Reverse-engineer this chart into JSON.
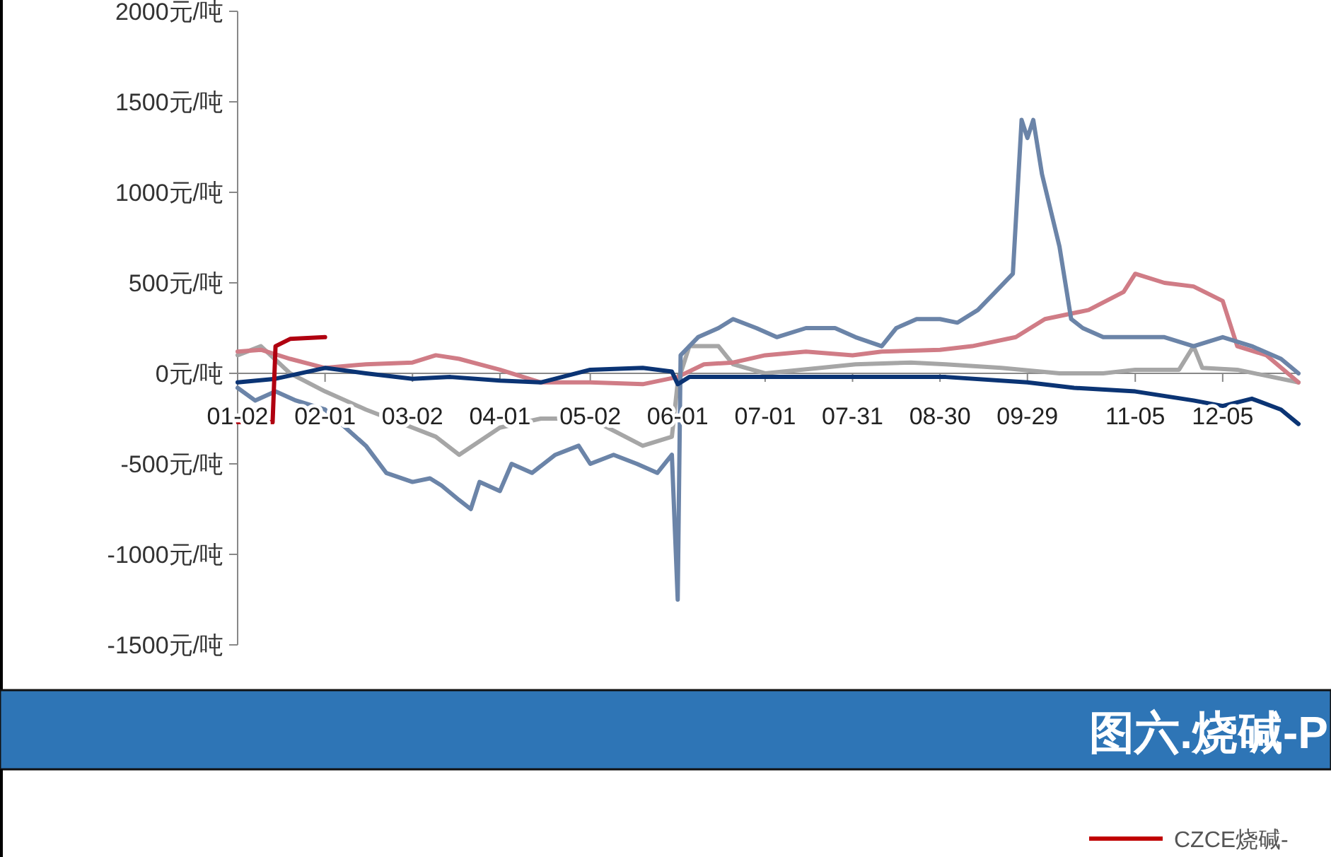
{
  "chart_data": {
    "type": "line",
    "xlim": [
      "--01-02",
      "--12-31"
    ],
    "xticks": [
      {
        "value": "--01-02",
        "label": "01-02"
      },
      {
        "value": "--02-01",
        "label": "02-01"
      },
      {
        "value": "--03-02",
        "label": "03-02"
      },
      {
        "value": "--04-01",
        "label": "04-01"
      },
      {
        "value": "--05-02",
        "label": "05-02"
      },
      {
        "value": "--06-01",
        "label": "06-01"
      },
      {
        "value": "--07-01",
        "label": "07-01"
      },
      {
        "value": "--07-31",
        "label": "07-31"
      },
      {
        "value": "--08-30",
        "label": "08-30"
      },
      {
        "value": "--09-29",
        "label": "09-29"
      },
      {
        "value": "--11-05",
        "label": "11-05"
      },
      {
        "value": "--12-05",
        "label": "12-05"
      }
    ],
    "ylim": [
      -1500,
      2000
    ],
    "yticks": [
      {
        "value": -1500,
        "label": "-1500元/吨"
      },
      {
        "value": -1000,
        "label": "-1000元/吨"
      },
      {
        "value": -500,
        "label": "-500元/吨"
      },
      {
        "value": 0,
        "label": "0元/吨"
      },
      {
        "value": 500,
        "label": "500元/吨"
      },
      {
        "value": 1000,
        "label": "1000元/吨"
      },
      {
        "value": 1500,
        "label": "1500元/吨"
      },
      {
        "value": 2000,
        "label": "2000元/吨"
      }
    ],
    "series": [
      {
        "color": "#a6a6a6",
        "x": [
          "--01-02",
          "--01-10",
          "--01-20",
          "--02-01",
          "--02-15",
          "--03-02",
          "--03-10",
          "--03-18",
          "--04-01",
          "--04-15",
          "--05-02",
          "--05-20",
          "--05-30",
          "--06-01",
          "--06-05",
          "--06-15",
          "--06-20",
          "--07-01",
          "--07-20",
          "--08-01",
          "--08-20",
          "--09-01",
          "--09-20",
          "--10-10",
          "--10-25",
          "--11-05",
          "--11-20",
          "--11-25",
          "--11-28",
          "--12-10",
          "--12-31"
        ],
        "values": [
          100,
          150,
          0,
          -100,
          -200,
          -300,
          -350,
          -450,
          -300,
          -250,
          -250,
          -400,
          -350,
          -50,
          150,
          150,
          50,
          0,
          30,
          50,
          60,
          50,
          30,
          0,
          0,
          20,
          20,
          150,
          30,
          20,
          -50
        ]
      },
      {
        "color": "#d07c86",
        "x": [
          "--01-02",
          "--01-10",
          "--01-20",
          "--02-01",
          "--02-15",
          "--03-02",
          "--03-10",
          "--03-18",
          "--04-01",
          "--04-15",
          "--05-02",
          "--05-20",
          "--06-01",
          "--06-10",
          "--06-20",
          "--07-01",
          "--07-15",
          "--07-31",
          "--08-10",
          "--08-30",
          "--09-10",
          "--09-25",
          "--10-05",
          "--10-20",
          "--11-01",
          "--11-05",
          "--11-15",
          "--11-25",
          "--12-05",
          "--12-10",
          "--12-20",
          "--12-31"
        ],
        "values": [
          120,
          130,
          80,
          30,
          50,
          60,
          100,
          80,
          20,
          -50,
          -50,
          -60,
          -20,
          50,
          60,
          100,
          120,
          100,
          120,
          130,
          150,
          200,
          300,
          350,
          450,
          550,
          500,
          480,
          400,
          150,
          100,
          -50
        ]
      },
      {
        "color": "#6b84a8",
        "x": [
          "--01-02",
          "--01-08",
          "--01-15",
          "--01-22",
          "--02-01",
          "--02-08",
          "--02-15",
          "--02-22",
          "--03-02",
          "--03-08",
          "--03-12",
          "--03-18",
          "--03-22",
          "--03-25",
          "--04-01",
          "--04-05",
          "--04-12",
          "--04-20",
          "--04-28",
          "--05-02",
          "--05-10",
          "--05-18",
          "--05-25",
          "--05-30",
          "--06-01",
          "--06-02",
          "--06-08",
          "--06-15",
          "--06-20",
          "--06-28",
          "--07-05",
          "--07-15",
          "--07-25",
          "--08-01",
          "--08-10",
          "--08-15",
          "--08-22",
          "--08-30",
          "--09-05",
          "--09-12",
          "--09-18",
          "--09-24",
          "--09-27",
          "--09-29",
          "--10-01",
          "--10-04",
          "--10-07",
          "--10-10",
          "--10-14",
          "--10-18",
          "--10-25",
          "--11-05",
          "--11-15",
          "--11-25",
          "--12-05",
          "--12-15",
          "--12-25",
          "--12-31"
        ],
        "values": [
          -80,
          -150,
          -100,
          -150,
          -200,
          -300,
          -400,
          -550,
          -600,
          -580,
          -620,
          -700,
          -750,
          -600,
          -650,
          -500,
          -550,
          -450,
          -400,
          -500,
          -450,
          -500,
          -550,
          -450,
          -1250,
          100,
          200,
          250,
          300,
          250,
          200,
          250,
          250,
          200,
          150,
          250,
          300,
          300,
          280,
          350,
          450,
          550,
          1400,
          1300,
          1400,
          1100,
          900,
          700,
          300,
          250,
          200,
          200,
          200,
          150,
          200,
          150,
          80,
          0
        ]
      },
      {
        "color": "#0b3474",
        "x": [
          "--01-02",
          "--01-15",
          "--02-01",
          "--02-15",
          "--03-02",
          "--03-15",
          "--04-01",
          "--04-15",
          "--05-02",
          "--05-20",
          "--05-30",
          "--06-01",
          "--06-05",
          "--07-01",
          "--08-01",
          "--09-01",
          "--09-29",
          "--10-15",
          "--11-05",
          "--11-25",
          "--12-05",
          "--12-15",
          "--12-25",
          "--12-31"
        ],
        "values": [
          -50,
          -30,
          30,
          0,
          -30,
          -20,
          -40,
          -50,
          20,
          30,
          10,
          -60,
          -20,
          -20,
          -20,
          -20,
          -50,
          -80,
          -100,
          -150,
          -180,
          -140,
          -200,
          -280
        ]
      },
      {
        "color": "#b00010",
        "x": [
          "--01-02",
          "--01-14",
          "--01-15",
          "--01-20",
          "--02-01"
        ],
        "values": [
          -270,
          -270,
          150,
          190,
          200
        ]
      }
    ],
    "annotations": [
      "图六.烧碱-P",
      "CZCE烧碱-"
    ]
  }
}
